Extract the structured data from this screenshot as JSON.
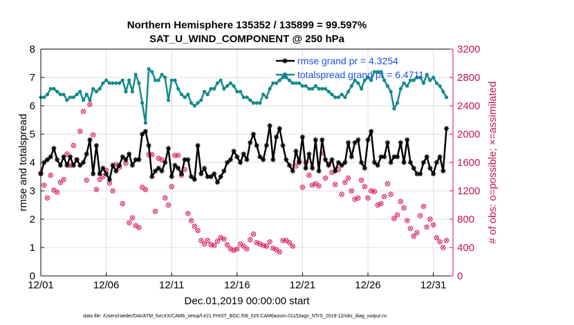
{
  "chart_data": {
    "type": "line",
    "title": "Northern Hemisphere 135352 / 135899 = 99.597%",
    "subtitle": "SAT_U_WIND_COMPONENT @ 250 hPa",
    "xlabel": "Dec.01,2019 00:00:00 start",
    "ylabel_left": "rmse and totalspread",
    "ylabel_right": "# of obs: o=possible; ×=assimilated",
    "xlim": [
      0,
      31.5
    ],
    "ylim_left": [
      0,
      8
    ],
    "ylim_right": [
      0,
      3200
    ],
    "x_ticks": [
      0,
      5,
      10,
      15,
      20,
      25,
      30
    ],
    "x_tick_labels": [
      "12/01",
      "12/06",
      "12/11",
      "12/16",
      "12/21",
      "12/26",
      "12/31"
    ],
    "y_ticks_left": [
      "0",
      "1",
      "2",
      "3",
      "4",
      "5",
      "6",
      "7",
      "8"
    ],
    "y_ticks_right": [
      "0",
      "400",
      "800",
      "1200",
      "1600",
      "2000",
      "2400",
      "2800",
      "3200"
    ],
    "grid": true,
    "legend": "top-right",
    "colors": {
      "rmse": "#000000",
      "spread": "#138a8a",
      "obs": "#d6125c",
      "right_axis": "#c8104e",
      "legend_text": "#1f4fe0"
    },
    "x": [
      0.0,
      0.25,
      0.5,
      0.75,
      1.0,
      1.25,
      1.5,
      1.75,
      2.0,
      2.25,
      2.5,
      2.75,
      3.0,
      3.25,
      3.5,
      3.75,
      4.0,
      4.25,
      4.5,
      4.75,
      5.0,
      5.25,
      5.5,
      5.75,
      6.0,
      6.25,
      6.5,
      6.75,
      7.0,
      7.25,
      7.5,
      7.75,
      8.0,
      8.25,
      8.5,
      8.75,
      9.0,
      9.25,
      9.5,
      9.75,
      10.0,
      10.25,
      10.5,
      10.75,
      11.0,
      11.25,
      11.5,
      11.75,
      12.0,
      12.25,
      12.5,
      12.75,
      13.0,
      13.25,
      13.5,
      13.75,
      14.0,
      14.25,
      14.5,
      14.75,
      15.0,
      15.25,
      15.5,
      15.75,
      16.0,
      16.25,
      16.5,
      16.75,
      17.0,
      17.25,
      17.5,
      17.75,
      18.0,
      18.25,
      18.5,
      18.75,
      19.0,
      19.25,
      19.5,
      19.75,
      20.0,
      20.25,
      20.5,
      20.75,
      21.0,
      21.25,
      21.5,
      21.75,
      22.0,
      22.25,
      22.5,
      22.75,
      23.0,
      23.25,
      23.5,
      23.75,
      24.0,
      24.25,
      24.5,
      24.75,
      25.0,
      25.25,
      25.5,
      25.75,
      26.0,
      26.25,
      26.5,
      26.75,
      27.0,
      27.25,
      27.5,
      27.75,
      28.0,
      28.25,
      28.5,
      28.75,
      29.0,
      29.25,
      29.5,
      29.75,
      30.0,
      30.25,
      30.5,
      30.75,
      31.0
    ],
    "series": [
      {
        "name": "rmse grand pr = 4.3254",
        "axis": "left",
        "values": [
          3.6,
          4.0,
          4.1,
          4.2,
          4.5,
          4.1,
          3.9,
          4.2,
          3.9,
          4.2,
          3.9,
          4.1,
          3.9,
          4.0,
          4.3,
          4.8,
          3.6,
          4.6,
          3.6,
          3.8,
          3.6,
          3.4,
          3.9,
          3.7,
          3.9,
          4.2,
          4.1,
          4.3,
          3.9,
          4.1,
          4.1,
          5.0,
          5.1,
          4.6,
          3.5,
          3.7,
          3.8,
          3.7,
          4.0,
          4.5,
          3.5,
          3.9,
          3.8,
          3.6,
          4.1,
          4.1,
          3.5,
          3.4,
          4.6,
          3.6,
          3.8,
          3.5,
          3.5,
          3.6,
          3.3,
          3.5,
          3.7,
          4.0,
          4.1,
          4.4,
          4.2,
          4.0,
          4.3,
          4.1,
          4.7,
          5.0,
          4.6,
          4.2,
          4.1,
          4.6,
          5.3,
          4.1,
          4.9,
          5.2,
          4.6,
          4.1,
          3.9,
          3.7,
          4.4,
          4.0,
          4.9,
          3.8,
          4.3,
          3.8,
          4.8,
          3.7,
          4.8,
          4.1,
          3.9,
          4.1,
          3.7,
          4.0,
          3.9,
          4.0,
          4.7,
          4.2,
          4.7,
          4.8,
          4.0,
          3.8,
          4.8,
          5.1,
          4.0,
          3.9,
          4.2,
          4.2,
          4.7,
          4.0,
          4.2,
          4.2,
          4.7,
          4.0,
          4.8,
          4.0,
          3.8,
          3.6,
          3.6,
          4.0,
          4.2,
          3.8,
          3.6,
          4.0,
          4.2,
          3.7,
          5.2
        ],
        "marker": "star"
      },
      {
        "name": "totalspread grand pr = 6.4711",
        "axis": "left",
        "values": [
          6.3,
          6.3,
          6.4,
          6.6,
          6.6,
          6.5,
          6.4,
          6.4,
          6.2,
          6.3,
          6.3,
          6.4,
          6.5,
          6.2,
          6.4,
          6.2,
          6.6,
          6.5,
          6.6,
          6.8,
          6.9,
          6.8,
          6.8,
          6.8,
          6.8,
          6.9,
          6.5,
          6.9,
          6.5,
          7.1,
          6.8,
          6.1,
          5.4,
          7.3,
          7.2,
          6.9,
          6.9,
          7.1,
          7.0,
          6.2,
          6.9,
          6.9,
          6.6,
          6.4,
          6.3,
          6.4,
          6.1,
          6.0,
          6.1,
          6.2,
          6.5,
          6.4,
          6.6,
          6.6,
          6.8,
          6.9,
          6.6,
          6.7,
          6.8,
          6.7,
          6.5,
          6.5,
          6.3,
          6.3,
          6.2,
          6.1,
          6.1,
          6.1,
          6.4,
          6.3,
          6.6,
          6.8,
          6.8,
          6.9,
          7.0,
          7.0,
          6.9,
          6.8,
          6.8,
          6.8,
          6.7,
          6.7,
          6.6,
          6.6,
          6.7,
          6.6,
          6.6,
          6.6,
          6.5,
          6.4,
          6.3,
          6.3,
          6.4,
          6.3,
          6.5,
          6.7,
          6.9,
          6.8,
          6.6,
          6.9,
          7.0,
          6.9,
          7.2,
          7.2,
          7.2,
          6.9,
          6.7,
          6.5,
          5.9,
          6.1,
          6.6,
          6.8,
          6.7,
          6.9,
          6.9,
          7.0,
          7.0,
          6.8,
          7.1,
          6.9,
          7.0,
          6.8,
          6.7,
          6.5,
          6.3
        ],
        "marker": "dot"
      },
      {
        "name": "possible",
        "axis": "right",
        "values": [
          1450,
          1280,
          1100,
          1420,
          1210,
          1180,
          1320,
          1360,
          1720,
          1560,
          1840,
          1640,
          2040,
          2320,
          1350,
          2420,
          1990,
          1220,
          1360,
          1400,
          1490,
          1310,
          1200,
          1570,
          1530,
          1020,
          1590,
          750,
          820,
          710,
          680,
          1250,
          1220,
          1710,
          1710,
          910,
          1660,
          1640,
          1100,
          1000,
          1260,
          1700,
          1700,
          1420,
          1500,
          880,
          780,
          700,
          640,
          500,
          450,
          500,
          440,
          430,
          490,
          540,
          520,
          440,
          380,
          360,
          380,
          450,
          420,
          380,
          510,
          590,
          470,
          450,
          430,
          420,
          480,
          390,
          370,
          340,
          500,
          500,
          470,
          420,
          1550,
          1620,
          1250,
          1600,
          1420,
          1280,
          1300,
          1270,
          1730,
          1380,
          1580,
          1460,
          1290,
          1500,
          1150,
          1320,
          1380,
          1200,
          1080,
          1100,
          1350,
          1260,
          1100,
          1200,
          1190,
          1000,
          1020,
          1120,
          1300,
          1150,
          810,
          860,
          1050,
          960,
          780,
          670,
          560,
          610,
          850,
          980,
          690,
          800,
          720,
          540,
          480,
          400,
          500
        ],
        "marker": "circle"
      }
    ]
  },
  "footnote": "data file: /Users/raeder/DAI/ATM_forcXX/CAM6_setup/f.e21.FHIST_BGC.f09_025.CAM6assim.011/Diags_NTrS_2019-12/obs_diag_output.nc"
}
